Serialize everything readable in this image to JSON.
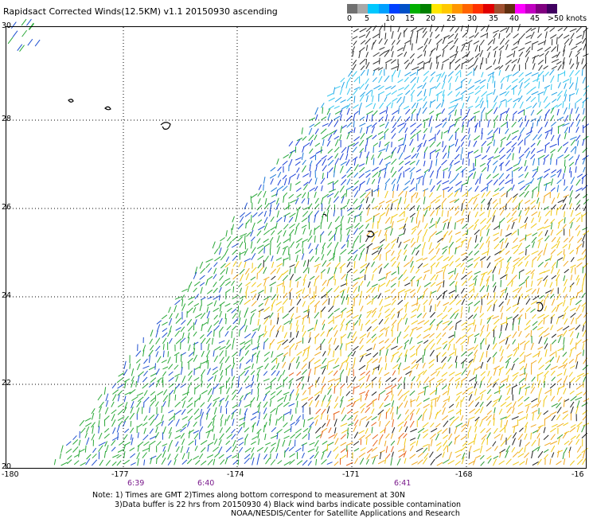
{
  "title": "Rapidsact Corrected Winds(12.5KM) v1.1 20150930 ascending",
  "legend": {
    "tick_labels": [
      "0",
      "5",
      "10",
      "15",
      "20",
      "25",
      "30",
      "35",
      "40",
      "45",
      ">50 knots"
    ],
    "colors": [
      "#707070",
      "#a8a8a8",
      "#00c8ff",
      "#00a0ff",
      "#0040ff",
      "#0050c8",
      "#00b000",
      "#008000",
      "#ffe600",
      "#ffc800",
      "#ff9600",
      "#ff6400",
      "#ff3200",
      "#e00000",
      "#a05030",
      "#603010",
      "#ff00ff",
      "#c000c0",
      "#800080",
      "#400060"
    ]
  },
  "axes": {
    "x_labels": [
      "-180",
      "-177",
      "-174",
      "-171",
      "-168",
      "-16"
    ],
    "y_labels": [
      "30",
      "28",
      "26",
      "24",
      "22",
      "20"
    ]
  },
  "times": [
    "6:39",
    "6:40",
    "6:41"
  ],
  "notes": [
    "Note: 1) Times are GMT 2)Times along bottom correspond to measurement at 30N",
    "3)Data buffer is 22 hrs from 20150930 4) Black wind barbs indicate possible contamination",
    "NOAA/NESDIS/Center for Satellite Applications and Research"
  ]
}
